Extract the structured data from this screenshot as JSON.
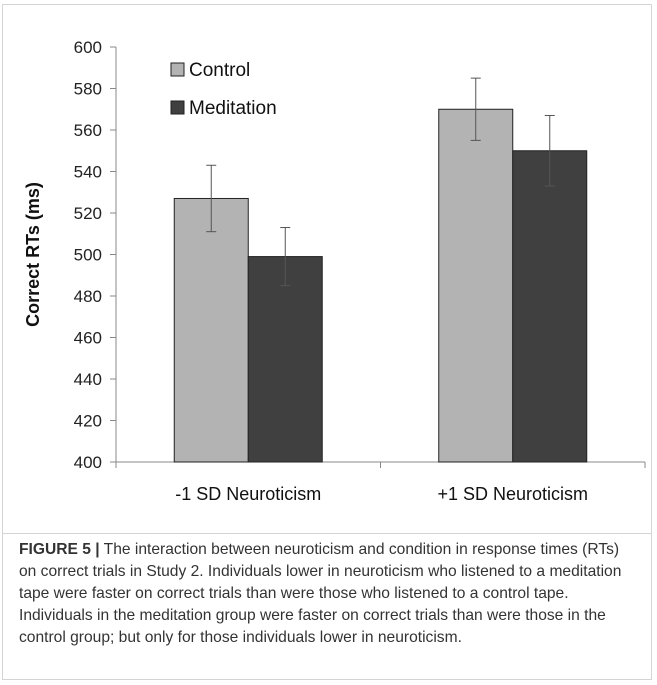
{
  "chart_data": {
    "type": "bar",
    "categories": [
      "-1 SD Neuroticism",
      "+1 SD Neuroticism"
    ],
    "series": [
      {
        "name": "Control",
        "values": [
          527,
          570
        ],
        "error": [
          16,
          15
        ],
        "color": "#b3b3b3"
      },
      {
        "name": "Meditation",
        "values": [
          499,
          550
        ],
        "error": [
          14,
          17
        ],
        "color": "#404040"
      }
    ],
    "ylabel": "Correct RTs (ms)",
    "ylim": [
      400,
      600
    ],
    "yticks": [
      "400",
      "420",
      "440",
      "460",
      "480",
      "500",
      "520",
      "540",
      "560",
      "580",
      "600"
    ],
    "grid": false,
    "legend": "top-left"
  },
  "caption": {
    "label": "FIGURE 5 |",
    "text": " The interaction between neuroticism and condition in response times (RTs) on correct trials in Study 2. Individuals lower in neuroticism who listened to a meditation tape were faster on correct trials than were those who listened to a control tape. Individuals in the meditation group were faster on correct trials than were those in the control group; but only for those individuals lower in neuroticism."
  }
}
